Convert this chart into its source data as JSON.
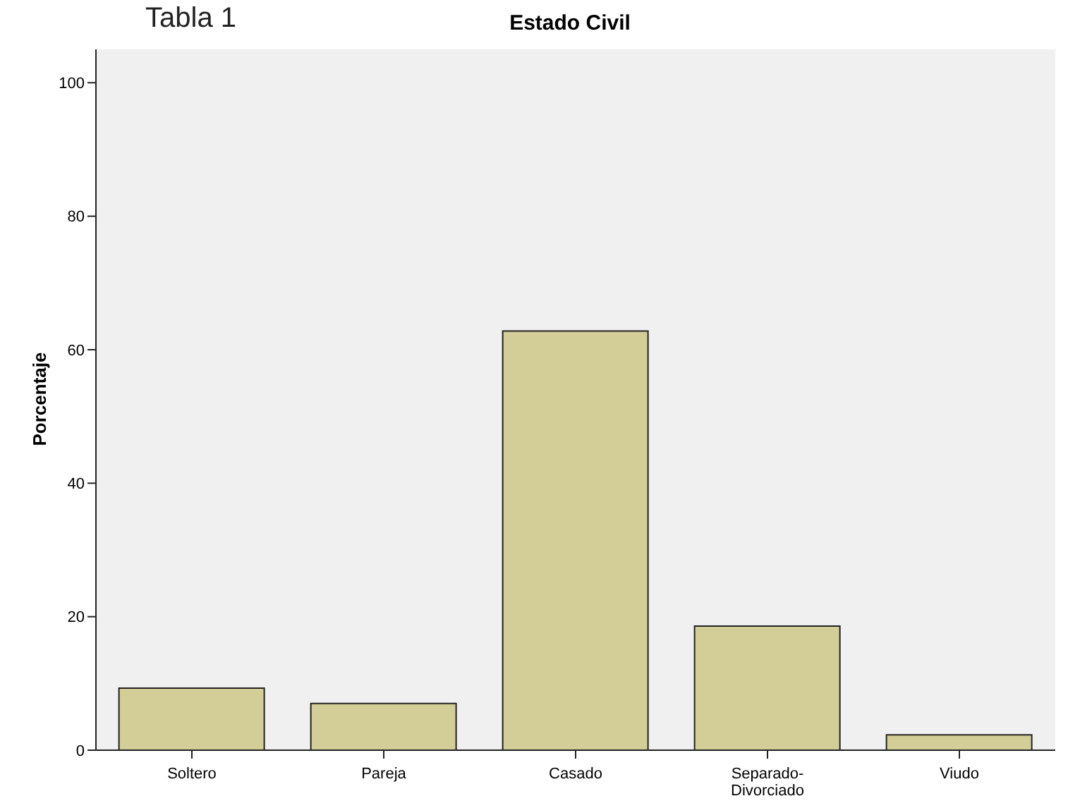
{
  "chart_data": {
    "type": "bar",
    "title": "Estado Civil",
    "ylabel": "Porcentaje",
    "annotations": [
      "Tabla 1"
    ],
    "categories": [
      "Soltero",
      "Pareja",
      "Casado",
      "Separado-Divorciado",
      "Viudo"
    ],
    "values": [
      9.3,
      7.0,
      62.8,
      18.6,
      2.3
    ],
    "color": "#d3ce97",
    "ylim": [
      0,
      105
    ],
    "yticks": [
      0,
      20,
      40,
      60,
      80,
      100
    ],
    "grid": false
  }
}
